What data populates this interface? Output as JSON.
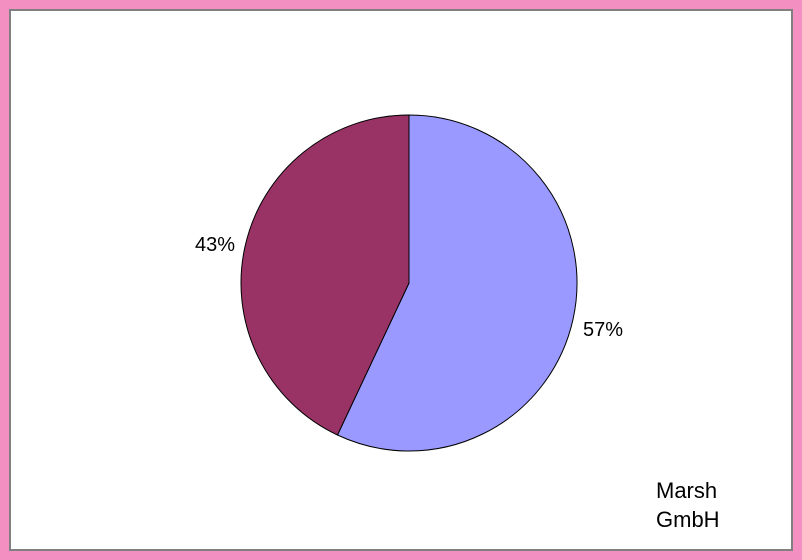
{
  "chart_data": {
    "type": "pie",
    "categories": [
      "",
      ""
    ],
    "values": [
      57,
      43
    ],
    "labels": [
      "57%",
      "43%"
    ],
    "colors": [
      "#9999ff",
      "#993366"
    ],
    "legend": "none"
  },
  "caption": {
    "line1": "Marsh",
    "line2": "GmbH"
  },
  "colors": {
    "frame": "#f48fc1",
    "border": "#808080"
  }
}
